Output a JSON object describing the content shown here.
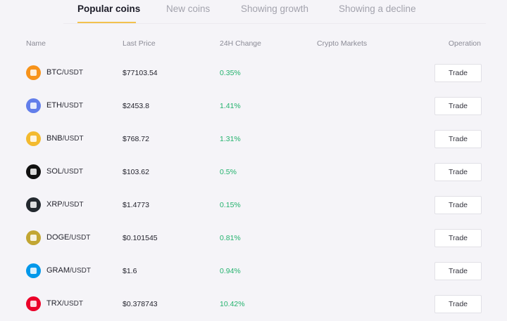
{
  "tabs": [
    "Popular coins",
    "New coins",
    "Showing growth",
    "Showing a decline"
  ],
  "table": {
    "headers": [
      "Name",
      "Last Price",
      "24H Change",
      "Crypto Markets",
      "Operation"
    ],
    "rows": [
      {
        "base": "BTC",
        "quote": "/USDT",
        "price": "$77103.54",
        "change": "0.35%",
        "action": "Trade"
      },
      {
        "base": "ETH",
        "quote": "/USDT",
        "price": "$2453.8",
        "change": "1.41%",
        "action": "Trade"
      },
      {
        "base": "BNB",
        "quote": "/USDT",
        "price": "$768.72",
        "change": "1.31%",
        "action": "Trade"
      },
      {
        "base": "SOL",
        "quote": "/USDT",
        "price": "$103.62",
        "change": "0.5%",
        "action": "Trade"
      },
      {
        "base": "XRP",
        "quote": "/USDT",
        "price": "$1.4773",
        "change": "0.15%",
        "action": "Trade"
      },
      {
        "base": "DOGE",
        "quote": "/USDT",
        "price": "$0.101545",
        "change": "0.81%",
        "action": "Trade"
      },
      {
        "base": "GRAM",
        "quote": "/USDT",
        "price": "$1.6",
        "change": "0.94%",
        "action": "Trade"
      },
      {
        "base": "TRX",
        "quote": "/USDT",
        "price": "$0.378743",
        "change": "10.42%",
        "action": "Trade"
      }
    ]
  }
}
